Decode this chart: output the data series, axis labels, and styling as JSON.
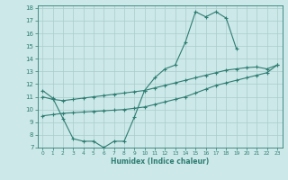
{
  "xlabel": "Humidex (Indice chaleur)",
  "bg_color": "#cce8e8",
  "grid_color": "#aacccc",
  "line_color": "#2e7d72",
  "xlim": [
    -0.5,
    23.5
  ],
  "ylim": [
    7,
    18.2
  ],
  "xticks": [
    0,
    1,
    2,
    3,
    4,
    5,
    6,
    7,
    8,
    9,
    10,
    11,
    12,
    13,
    14,
    15,
    16,
    17,
    18,
    19,
    20,
    21,
    22,
    23
  ],
  "yticks": [
    7,
    8,
    9,
    10,
    11,
    12,
    13,
    14,
    15,
    16,
    17,
    18
  ],
  "series1_x": [
    0,
    1,
    2,
    3,
    4,
    5,
    6,
    7,
    8,
    9,
    10,
    11,
    12,
    13,
    14,
    15,
    16,
    17,
    18,
    19
  ],
  "series1_y": [
    11.5,
    10.9,
    9.3,
    7.7,
    7.5,
    7.5,
    7.0,
    7.5,
    7.5,
    9.4,
    11.5,
    12.5,
    13.2,
    13.5,
    15.3,
    17.7,
    17.3,
    17.7,
    17.2,
    14.8
  ],
  "series2_x": [
    0,
    1,
    2,
    3,
    4,
    5,
    6,
    7,
    8,
    9,
    10,
    11,
    12,
    13,
    14,
    15,
    16,
    17,
    18,
    19,
    20,
    21,
    22,
    23
  ],
  "series2_y": [
    11.0,
    10.8,
    10.7,
    10.8,
    10.9,
    11.0,
    11.1,
    11.2,
    11.3,
    11.4,
    11.5,
    11.7,
    11.9,
    12.1,
    12.3,
    12.5,
    12.7,
    12.9,
    13.1,
    13.2,
    13.3,
    13.35,
    13.2,
    13.5
  ],
  "series3_x": [
    0,
    1,
    2,
    3,
    4,
    5,
    6,
    7,
    8,
    9,
    10,
    11,
    12,
    13,
    14,
    15,
    16,
    17,
    18,
    19,
    20,
    21,
    22,
    23
  ],
  "series3_y": [
    9.5,
    9.6,
    9.7,
    9.75,
    9.8,
    9.85,
    9.9,
    9.95,
    10.0,
    10.1,
    10.2,
    10.4,
    10.6,
    10.8,
    11.0,
    11.3,
    11.6,
    11.9,
    12.1,
    12.3,
    12.5,
    12.7,
    12.9,
    13.5
  ]
}
